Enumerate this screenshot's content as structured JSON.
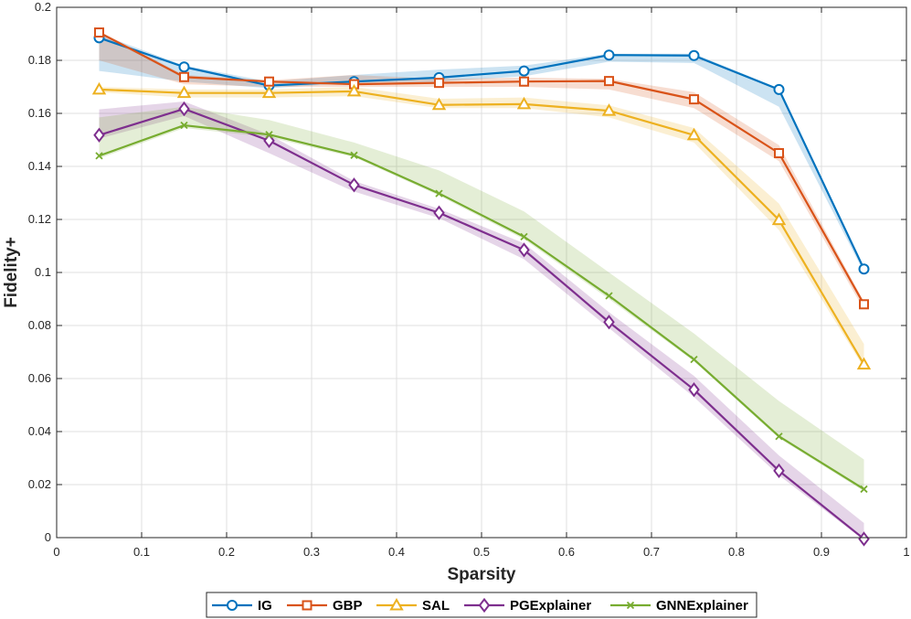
{
  "chart_data": {
    "type": "line",
    "title": "",
    "xlabel": "Sparsity",
    "ylabel": "Fidelity+",
    "xlim": [
      0,
      1
    ],
    "ylim": [
      0,
      0.2
    ],
    "grid": true,
    "legend_position": "bottom",
    "xticks": [
      0,
      0.1,
      0.2,
      0.3,
      0.4,
      0.5,
      0.6,
      0.7,
      0.8,
      0.9,
      1
    ],
    "xtick_labels": [
      "0",
      "0.1",
      "0.2",
      "0.3",
      "0.4",
      "0.5",
      "0.6",
      "0.7",
      "0.8",
      "0.9",
      "1"
    ],
    "yticks": [
      0,
      0.02,
      0.04,
      0.06,
      0.08,
      0.1,
      0.12,
      0.14,
      0.16,
      0.18,
      0.2
    ],
    "ytick_labels": [
      "0",
      "0.02",
      "0.04",
      "0.06",
      "0.08",
      "0.1",
      "0.12",
      "0.14",
      "0.16",
      "0.18",
      "0.2"
    ],
    "x": [
      0.05,
      0.15,
      0.25,
      0.35,
      0.45,
      0.55,
      0.65,
      0.75,
      0.85,
      0.95
    ],
    "series": [
      {
        "name": "IG",
        "color": "#0072BD",
        "marker": "circle",
        "values": [
          0.1885,
          0.1775,
          0.1705,
          0.172,
          0.1735,
          0.176,
          0.182,
          0.1818,
          0.169,
          0.1013
        ],
        "band_upper": [
          0.19,
          0.178,
          0.172,
          0.1745,
          0.1765,
          0.178,
          0.1825,
          0.1825,
          0.1695,
          0.102
        ],
        "band_lower": [
          0.176,
          0.172,
          0.1695,
          0.1715,
          0.172,
          0.174,
          0.1795,
          0.179,
          0.1625,
          0.1
        ]
      },
      {
        "name": "GBP",
        "color": "#D95319",
        "marker": "square",
        "values": [
          0.1905,
          0.1737,
          0.172,
          0.171,
          0.1715,
          0.172,
          0.1722,
          0.1653,
          0.145,
          0.088
        ],
        "band_upper": [
          0.191,
          0.1745,
          0.1725,
          0.1745,
          0.173,
          0.1735,
          0.173,
          0.168,
          0.148,
          0.089
        ],
        "band_lower": [
          0.18,
          0.171,
          0.17,
          0.17,
          0.17,
          0.17,
          0.169,
          0.162,
          0.142,
          0.086
        ]
      },
      {
        "name": "SAL",
        "color": "#EDB120",
        "marker": "triangle",
        "values": [
          0.169,
          0.1677,
          0.1677,
          0.1683,
          0.1632,
          0.1635,
          0.161,
          0.1518,
          0.1198,
          0.0653
        ],
        "band_upper": [
          0.17,
          0.169,
          0.169,
          0.17,
          0.1655,
          0.166,
          0.163,
          0.1545,
          0.126,
          0.073
        ],
        "band_lower": [
          0.168,
          0.166,
          0.166,
          0.1665,
          0.162,
          0.162,
          0.1585,
          0.149,
          0.116,
          0.064
        ]
      },
      {
        "name": "PGExplainer",
        "color": "#7E2F8E",
        "marker": "diamond",
        "values": [
          0.1518,
          0.1617,
          0.1497,
          0.133,
          0.1225,
          0.1085,
          0.0813,
          0.0558,
          0.0252,
          -0.0005
        ],
        "band_upper": [
          0.1615,
          0.1645,
          0.152,
          0.1345,
          0.124,
          0.111,
          0.085,
          0.061,
          0.031,
          0.0055
        ],
        "band_lower": [
          0.1505,
          0.159,
          0.145,
          0.1305,
          0.1205,
          0.105,
          0.079,
          0.053,
          0.0235,
          -0.001
        ]
      },
      {
        "name": "GNNExplainer",
        "color": "#77AC30",
        "marker": "x",
        "values": [
          0.144,
          0.1555,
          0.152,
          0.1442,
          0.1298,
          0.1135,
          0.0912,
          0.0672,
          0.0382,
          0.0183
        ],
        "band_upper": [
          0.1585,
          0.1625,
          0.1575,
          0.149,
          0.1385,
          0.123,
          0.1,
          0.077,
          0.0515,
          0.0295
        ],
        "band_lower": [
          0.143,
          0.1545,
          0.151,
          0.1435,
          0.129,
          0.1125,
          0.09,
          0.0665,
          0.0375,
          0.0175
        ]
      }
    ]
  }
}
